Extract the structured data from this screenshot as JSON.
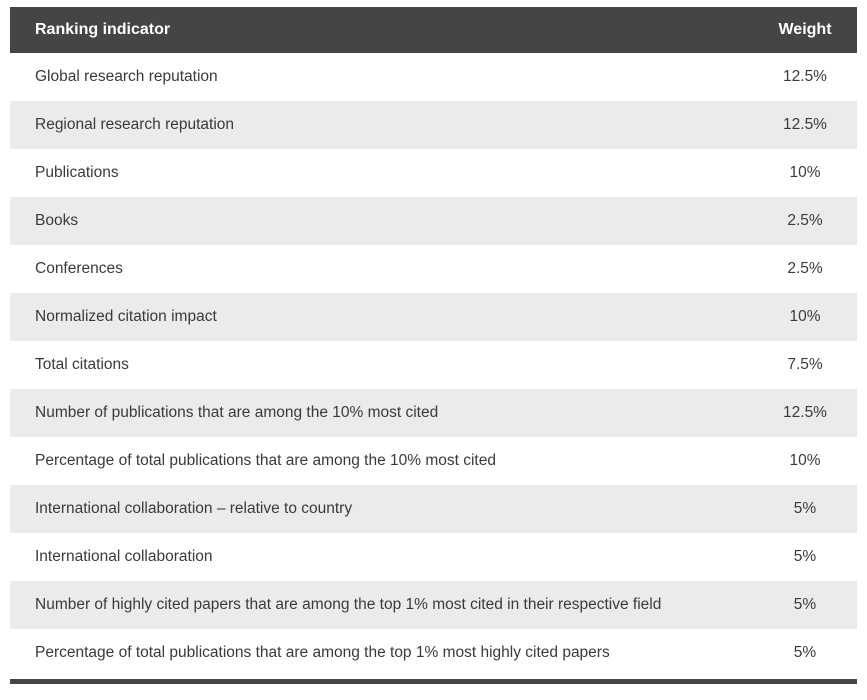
{
  "table": {
    "columns": [
      {
        "label": "Ranking indicator"
      },
      {
        "label": "Weight"
      }
    ],
    "rows": [
      {
        "indicator": "Global research reputation",
        "weight": "12.5%"
      },
      {
        "indicator": "Regional research reputation",
        "weight": "12.5%"
      },
      {
        "indicator": "Publications",
        "weight": "10%"
      },
      {
        "indicator": "Books",
        "weight": "2.5%"
      },
      {
        "indicator": "Conferences",
        "weight": "2.5%"
      },
      {
        "indicator": "Normalized citation impact",
        "weight": "10%"
      },
      {
        "indicator": "Total citations",
        "weight": "7.5%"
      },
      {
        "indicator": "Number of publications that are among the 10% most cited",
        "weight": "12.5%"
      },
      {
        "indicator": "Percentage of total publications that are among the 10% most cited",
        "weight": "10%"
      },
      {
        "indicator": "International collaboration – relative to country",
        "weight": "5%"
      },
      {
        "indicator": "International collaboration",
        "weight": "5%"
      },
      {
        "indicator": "Number of highly cited papers that are among the top 1% most cited in their respective field",
        "weight": "5%"
      },
      {
        "indicator": "Percentage of total publications that are among the top 1% most highly cited papers",
        "weight": "5%"
      }
    ],
    "colors": {
      "header_bg": "#454545",
      "header_text": "#ffffff",
      "row_bg": "#ffffff",
      "row_alt_bg": "#ebebeb",
      "text": "#3a3a3a"
    }
  }
}
